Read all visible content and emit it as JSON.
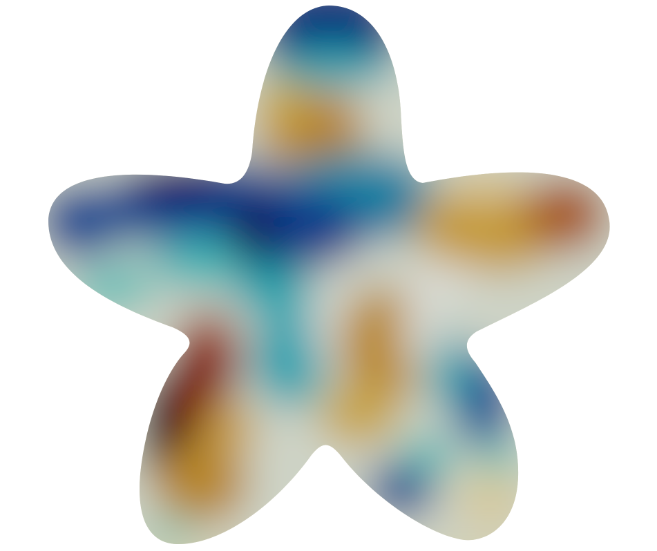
{
  "scene": {
    "background": "#ffffff",
    "shape": "five-lobed-star",
    "colormap": {
      "name": "diverging-blue-white-brown",
      "stops": [
        "#12065c",
        "#0a4f8e",
        "#0d8aa6",
        "#37b8b6",
        "#d6d8d4",
        "#c9a641",
        "#b5822a",
        "#9a3a12",
        "#3d0510"
      ]
    }
  }
}
